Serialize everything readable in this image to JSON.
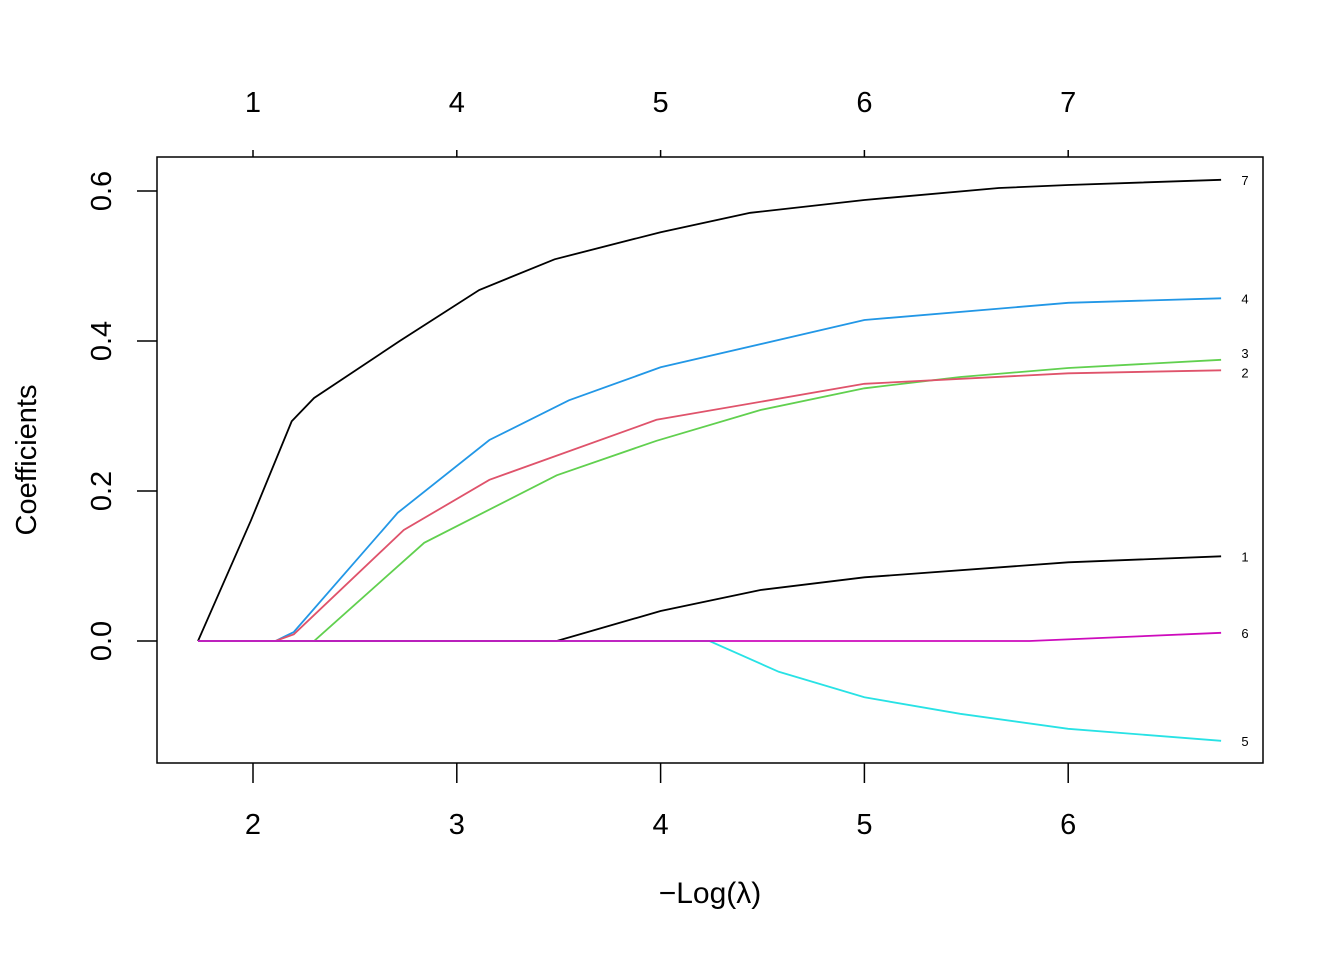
{
  "chart_data": {
    "type": "line",
    "xlabel": "−Log(λ)",
    "ylabel": "Coefficients",
    "xlim": [
      1.5,
      6.95
    ],
    "ylim": [
      -0.16,
      0.645
    ],
    "x_ticks": [
      2,
      3,
      4,
      5,
      6
    ],
    "x_tick_labels": [
      "2",
      "3",
      "4",
      "5",
      "6"
    ],
    "y_ticks": [
      0.0,
      0.2,
      0.4,
      0.6
    ],
    "y_tick_labels": [
      "0.0",
      "0.2",
      "0.4",
      "0.6"
    ],
    "top_axis_ticks": [
      2,
      3,
      4,
      5,
      6
    ],
    "top_axis_labels": [
      "1",
      "4",
      "5",
      "6",
      "7"
    ],
    "grid": false,
    "series": [
      {
        "name": "7",
        "color": "#000000",
        "x": [
          1.73,
          1.99,
          2.19,
          2.3,
          2.72,
          3.11,
          3.48,
          4.0,
          4.44,
          5.0,
          5.66,
          6.0,
          6.75
        ],
        "y": [
          0,
          0.161,
          0.293,
          0.324,
          0.4,
          0.468,
          0.509,
          0.545,
          0.571,
          0.588,
          0.604,
          0.608,
          0.615
        ]
      },
      {
        "name": "4",
        "color": "#2297E6",
        "x": [
          1.73,
          2.11,
          2.2,
          2.71,
          3.16,
          3.55,
          4.0,
          5.0,
          6.0,
          6.75
        ],
        "y": [
          0,
          0,
          0.012,
          0.171,
          0.268,
          0.321,
          0.365,
          0.428,
          0.451,
          0.457
        ]
      },
      {
        "name": "3",
        "color": "#61D04F",
        "x": [
          1.73,
          2.3,
          2.84,
          3.49,
          3.98,
          4.49,
          5.0,
          5.47,
          6.0,
          6.75
        ],
        "y": [
          0,
          0,
          0.131,
          0.221,
          0.267,
          0.308,
          0.337,
          0.352,
          0.364,
          0.375
        ]
      },
      {
        "name": "2",
        "color": "#DF536B",
        "x": [
          1.73,
          2.11,
          2.2,
          2.74,
          3.16,
          3.98,
          5.0,
          6.0,
          6.75
        ],
        "y": [
          0,
          0,
          0.009,
          0.148,
          0.215,
          0.295,
          0.343,
          0.357,
          0.361
        ]
      },
      {
        "name": "1",
        "color": "#000000",
        "x": [
          1.73,
          3.49,
          4.0,
          4.49,
          5.0,
          6.0,
          6.75
        ],
        "y": [
          0,
          0,
          0.04,
          0.068,
          0.085,
          0.105,
          0.113
        ]
      },
      {
        "name": "6",
        "color": "#CD0BBC",
        "x": [
          1.73,
          5.81,
          6.75
        ],
        "y": [
          0,
          0,
          0.011
        ]
      },
      {
        "name": "5",
        "color": "#28E2E5",
        "x": [
          1.73,
          4.24,
          4.58,
          5.0,
          5.47,
          6.0,
          6.75
        ],
        "y": [
          0,
          0,
          -0.041,
          -0.075,
          -0.097,
          -0.117,
          -0.133
        ]
      }
    ]
  }
}
